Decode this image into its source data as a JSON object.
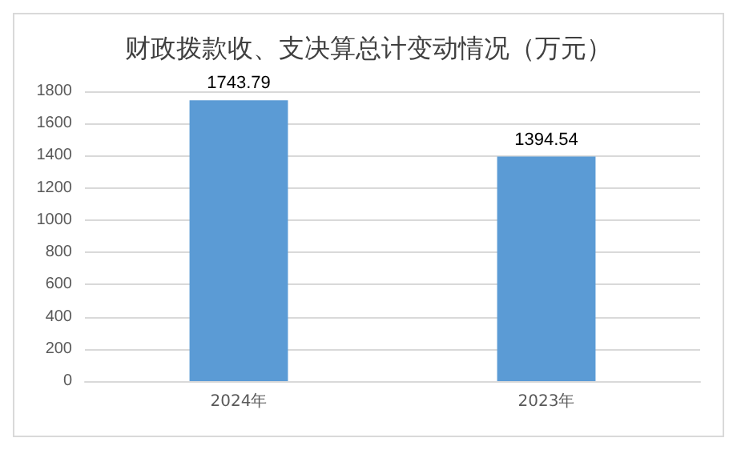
{
  "chart_data": {
    "type": "bar",
    "title": "财政拨款收、支决算总计变动情况（万元）",
    "categories": [
      "2024年",
      "2023年"
    ],
    "values": [
      1743.79,
      1394.54
    ],
    "color": "#5b9bd5",
    "ylim": [
      0,
      1800
    ],
    "yticks": [
      0,
      200,
      400,
      600,
      800,
      1000,
      1200,
      1400,
      1600,
      1800
    ],
    "grid": "y",
    "data_labels": true
  }
}
